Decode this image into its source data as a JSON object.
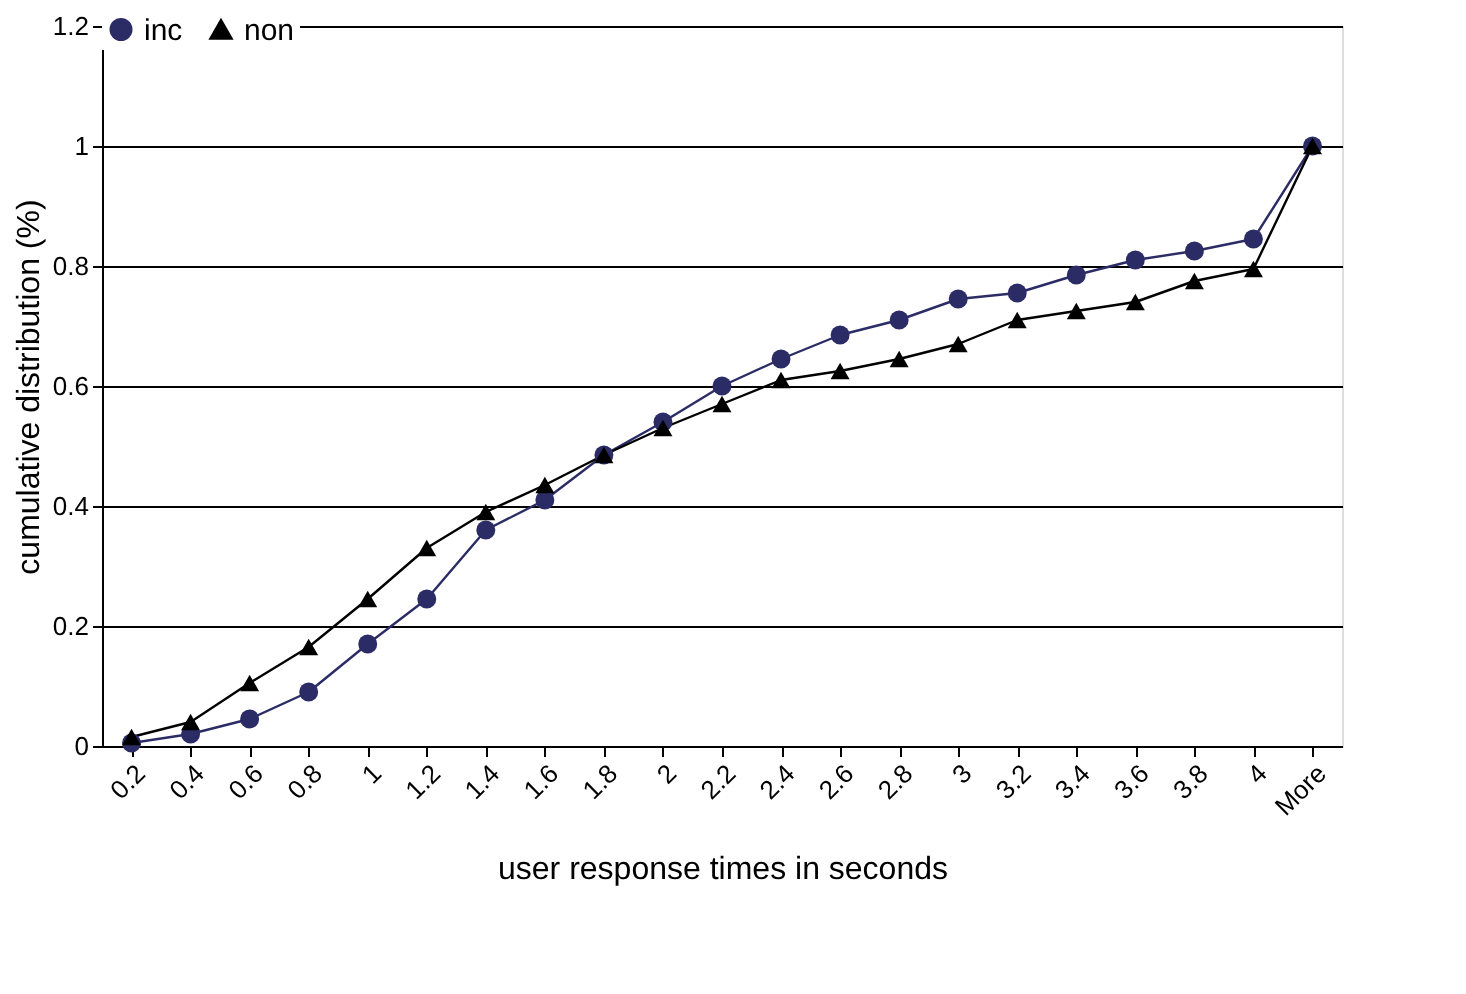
{
  "chart_data": {
    "type": "line",
    "xlabel": "user response times in seconds",
    "ylabel": "cumulative distribution (%)",
    "categories": [
      "0.2",
      "0.4",
      "0.6",
      "0.8",
      "1",
      "1.2",
      "1.4",
      "1.6",
      "1.8",
      "2",
      "2.2",
      "2.4",
      "2.6",
      "2.8",
      "3",
      "3.2",
      "3.4",
      "3.6",
      "3.8",
      "4",
      "More"
    ],
    "series": [
      {
        "name": "inc",
        "color": "#2b2b66",
        "marker": "circle",
        "values": [
          0.005,
          0.02,
          0.045,
          0.09,
          0.17,
          0.245,
          0.36,
          0.41,
          0.485,
          0.54,
          0.6,
          0.645,
          0.685,
          0.71,
          0.745,
          0.755,
          0.785,
          0.81,
          0.825,
          0.845,
          1.0
        ]
      },
      {
        "name": "non",
        "color": "#000000",
        "marker": "triangle",
        "values": [
          0.015,
          0.04,
          0.105,
          0.165,
          0.245,
          0.33,
          0.39,
          0.435,
          0.485,
          0.53,
          0.57,
          0.61,
          0.625,
          0.645,
          0.67,
          0.71,
          0.725,
          0.74,
          0.775,
          0.795,
          1.0
        ]
      }
    ],
    "ylim": [
      0,
      1.2
    ],
    "yticks": [
      0,
      0.2,
      0.4,
      0.6,
      0.8,
      1,
      1.2
    ],
    "grid": "y",
    "legend": "top",
    "line_style": "solid"
  }
}
